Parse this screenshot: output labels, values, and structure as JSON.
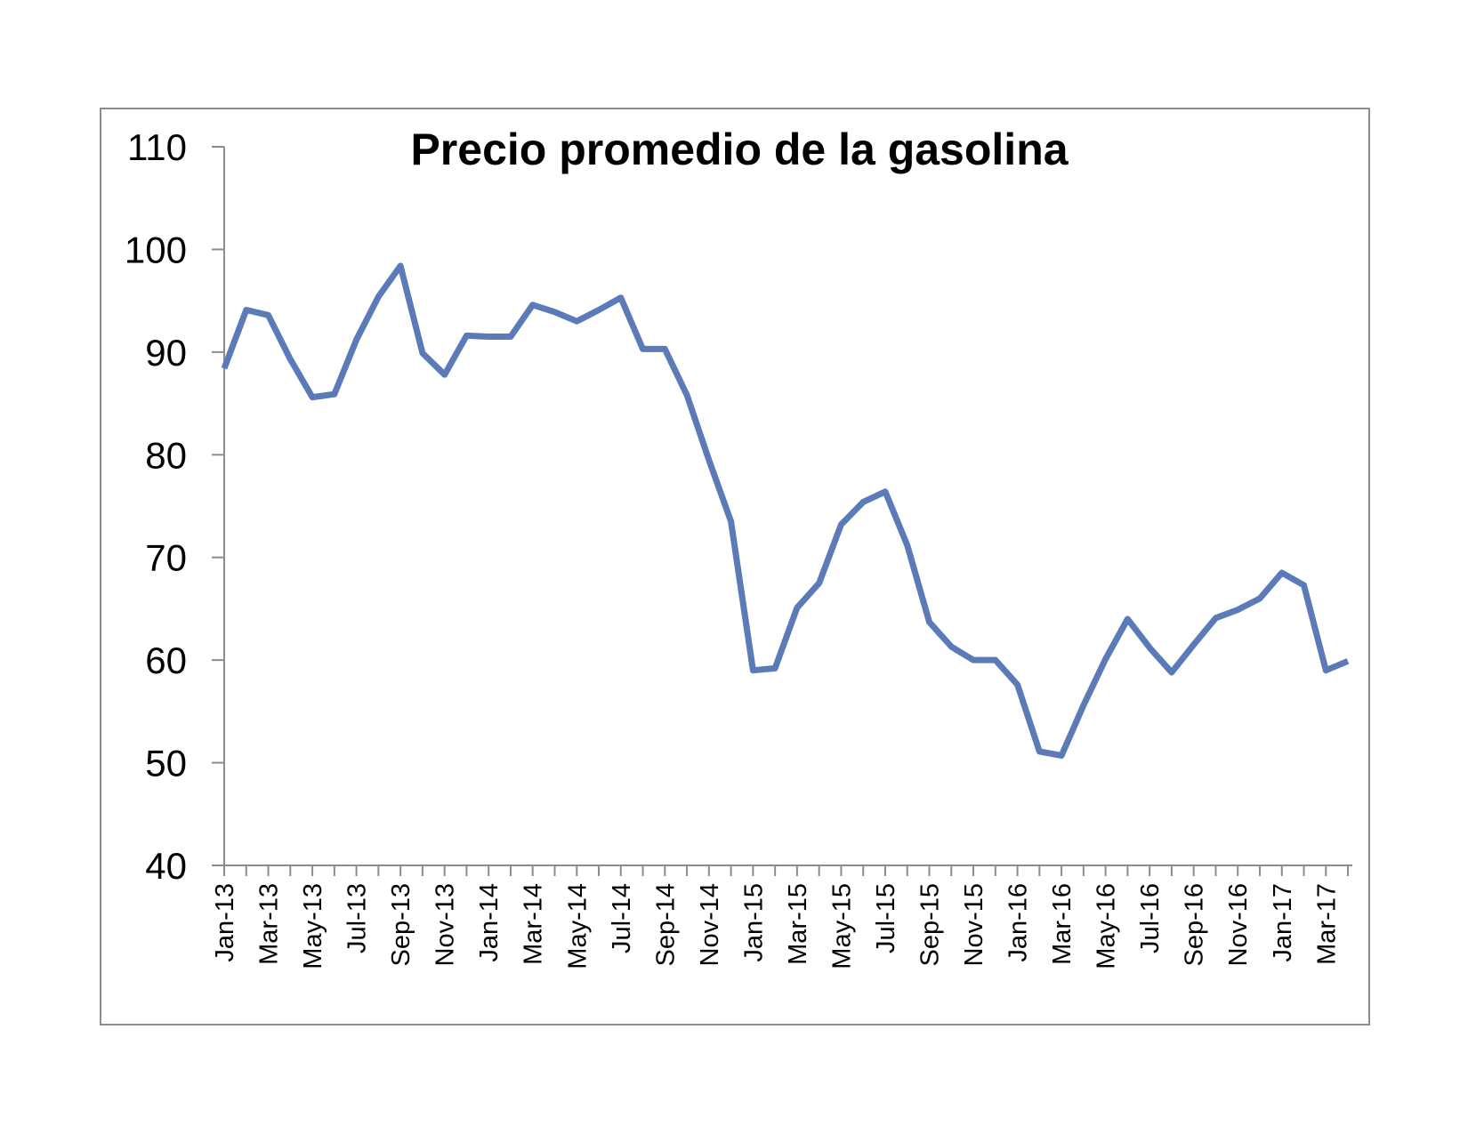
{
  "chart_data": {
    "type": "line",
    "title": "Precio promedio de la gasolina",
    "xlabel": "",
    "ylabel": "",
    "ylim": [
      40,
      110
    ],
    "yticks": [
      40,
      50,
      60,
      70,
      80,
      90,
      100,
      110
    ],
    "grid": false,
    "legend": "none",
    "x": [
      "Jan-13",
      "Feb-13",
      "Mar-13",
      "Apr-13",
      "May-13",
      "Jun-13",
      "Jul-13",
      "Aug-13",
      "Sep-13",
      "Oct-13",
      "Nov-13",
      "Dec-13",
      "Jan-14",
      "Feb-14",
      "Mar-14",
      "Apr-14",
      "May-14",
      "Jun-14",
      "Jul-14",
      "Aug-14",
      "Sep-14",
      "Oct-14",
      "Nov-14",
      "Dec-14",
      "Jan-15",
      "Feb-15",
      "Mar-15",
      "Apr-15",
      "May-15",
      "Jun-15",
      "Jul-15",
      "Aug-15",
      "Sep-15",
      "Oct-15",
      "Nov-15",
      "Dec-15",
      "Jan-16",
      "Feb-16",
      "Mar-16",
      "Apr-16",
      "May-16",
      "Jun-16",
      "Jul-16",
      "Aug-16",
      "Sep-16",
      "Oct-16",
      "Nov-16",
      "Dec-16",
      "Jan-17",
      "Feb-17",
      "Mar-17",
      "Apr-17"
    ],
    "xtick_labels": [
      "Jan-13",
      "Mar-13",
      "May-13",
      "Jul-13",
      "Sep-13",
      "Nov-13",
      "Jan-14",
      "Mar-14",
      "May-14",
      "Jul-14",
      "Sep-14",
      "Nov-14",
      "Jan-15",
      "Mar-15",
      "May-15",
      "Jul-15",
      "Sep-15",
      "Nov-15",
      "Jan-16",
      "Mar-16",
      "May-16",
      "Jul-16",
      "Sep-16",
      "Nov-16",
      "Jan-17",
      "Mar-17"
    ],
    "series": [
      {
        "name": "",
        "color": "#5b7bb8",
        "values": [
          88.4,
          94.1,
          93.6,
          89.3,
          85.6,
          85.9,
          91.2,
          95.4,
          98.4,
          89.9,
          87.8,
          91.6,
          91.5,
          91.5,
          94.6,
          93.9,
          93.0,
          94.1,
          95.3,
          90.3,
          90.3,
          85.8,
          79.5,
          73.5,
          59.0,
          59.2,
          65.1,
          67.5,
          73.2,
          75.4,
          76.4,
          71.2,
          63.7,
          61.3,
          60.0,
          60.0,
          57.6,
          51.1,
          50.7,
          55.6,
          60.1,
          64.0,
          61.2,
          58.8,
          61.5,
          64.1,
          64.9,
          66.0,
          68.5,
          67.3,
          59.0,
          59.9
        ]
      }
    ]
  }
}
